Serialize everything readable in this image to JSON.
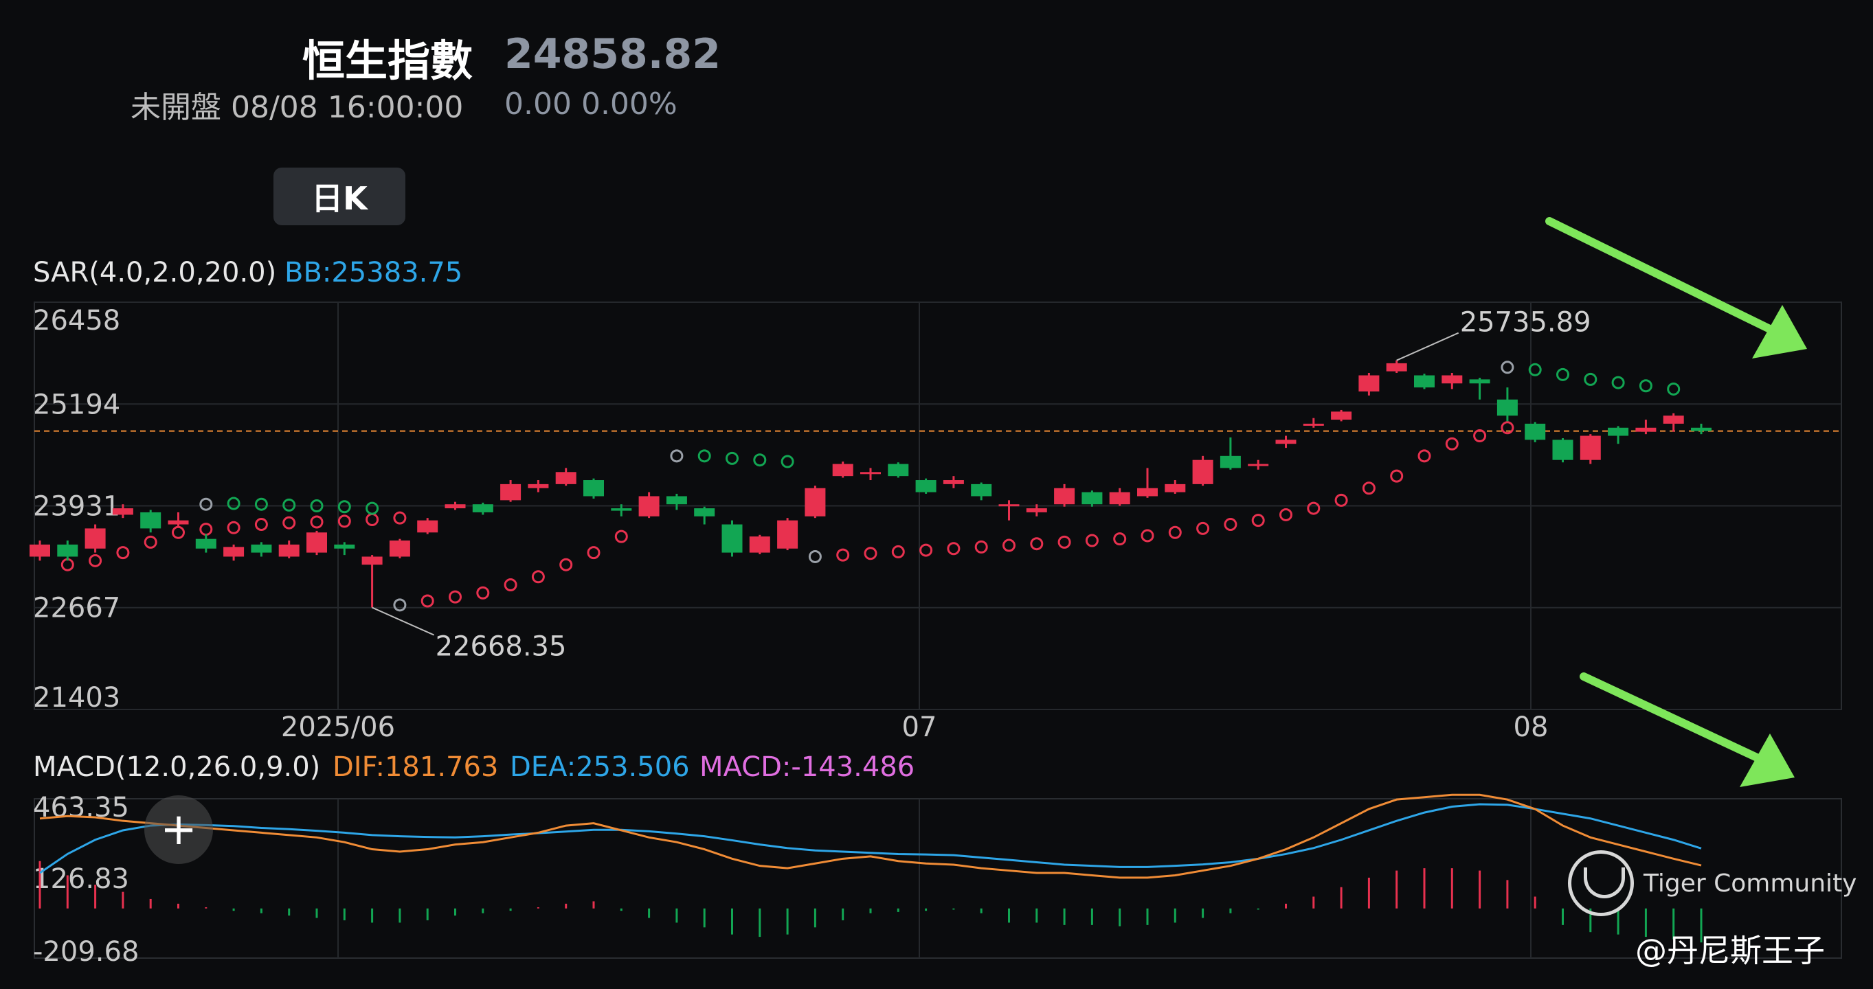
{
  "header": {
    "title": "恒生指數",
    "price": "24858.82",
    "status": "未開盤 08/08 16:00:00",
    "change": "0.00 0.00%",
    "period_button": "日K"
  },
  "indicators": {
    "sar_name": "SAR(4.0,2.0,20.0)",
    "sar_bb": "BB:25383.75",
    "macd_name": "MACD(12.0,26.0,9.0)",
    "dif": "DIF:181.763",
    "dea": "DEA:253.506",
    "macd": "MACD:-143.486"
  },
  "watermark": {
    "brand": "Tiger Community",
    "author": "@丹尼斯王子"
  },
  "colors": {
    "up": "#e8314f",
    "down": "#12a653",
    "dif": "#f08c36",
    "dea": "#2ea6e8",
    "last_price_line": "#f08c36",
    "arrow": "#7ee65a"
  },
  "chart_data": [
    {
      "type": "candlestick",
      "title": "",
      "yaxis_ticks": [
        26458,
        25194,
        23931,
        22667,
        21403
      ],
      "ylim": [
        21403,
        26458
      ],
      "xaxis_ticks": [
        "2025/06",
        "07",
        "08"
      ],
      "last_price": 24858.82,
      "annotations": [
        {
          "label": "25735.89",
          "value": 25735.89
        },
        {
          "label": "22668.35",
          "value": 22668.35
        }
      ],
      "candles": [
        [
          23300,
          23450,
          23500,
          23250
        ],
        [
          23450,
          23300,
          23500,
          23250
        ],
        [
          23400,
          23650,
          23700,
          23350
        ],
        [
          23820,
          23900,
          23950,
          23780
        ],
        [
          23850,
          23650,
          23880,
          23600
        ],
        [
          23700,
          23750,
          23850,
          23680
        ],
        [
          23520,
          23400,
          23580,
          23350
        ],
        [
          23300,
          23420,
          23450,
          23250
        ],
        [
          23450,
          23350,
          23480,
          23300
        ],
        [
          23300,
          23450,
          23500,
          23280
        ],
        [
          23350,
          23600,
          23620,
          23320
        ],
        [
          23450,
          23400,
          23480,
          23320
        ],
        [
          23200,
          23300,
          23320,
          22668.35
        ],
        [
          23300,
          23500,
          23520,
          23280
        ],
        [
          23600,
          23750,
          23780,
          23580
        ],
        [
          23900,
          23950,
          23980,
          23880
        ],
        [
          23950,
          23850,
          23970,
          23820
        ],
        [
          24000,
          24200,
          24250,
          23980
        ],
        [
          24150,
          24200,
          24250,
          24100
        ],
        [
          24200,
          24350,
          24400,
          24180
        ],
        [
          24250,
          24050,
          24270,
          24020
        ],
        [
          23900,
          23870,
          23950,
          23800
        ],
        [
          23800,
          24050,
          24100,
          23780
        ],
        [
          24050,
          23950,
          24080,
          23880
        ],
        [
          23900,
          23800,
          23920,
          23700
        ],
        [
          23700,
          23350,
          23750,
          23300
        ],
        [
          23350,
          23550,
          23570,
          23330
        ],
        [
          23400,
          23750,
          23780,
          23380
        ],
        [
          23800,
          24150,
          24180,
          23780
        ],
        [
          24300,
          24450,
          24480,
          24280
        ],
        [
          24350,
          24350,
          24400,
          24250
        ],
        [
          24450,
          24300,
          24470,
          24280
        ],
        [
          24250,
          24100,
          24270,
          24080
        ],
        [
          24200,
          24250,
          24300,
          24150
        ],
        [
          24200,
          24050,
          24220,
          24000
        ],
        [
          23950,
          23950,
          24000,
          23750
        ],
        [
          23850,
          23900,
          23950,
          23800
        ],
        [
          23950,
          24150,
          24200,
          23920
        ],
        [
          24100,
          23950,
          24120,
          23920
        ],
        [
          23950,
          24100,
          24150,
          23930
        ],
        [
          24050,
          24150,
          24400,
          24030
        ],
        [
          24100,
          24200,
          24250,
          24080
        ],
        [
          24200,
          24500,
          24550,
          24180
        ],
        [
          24550,
          24400,
          24780,
          24380
        ],
        [
          24450,
          24450,
          24500,
          24380
        ],
        [
          24700,
          24750,
          24800,
          24650
        ],
        [
          24950,
          24950,
          25020,
          24900
        ],
        [
          25000,
          25100,
          25120,
          24980
        ],
        [
          25350,
          25550,
          25580,
          25300
        ],
        [
          25600,
          25700,
          25735.89,
          25580
        ],
        [
          25550,
          25400,
          25570,
          25380
        ],
        [
          25450,
          25550,
          25580,
          25380
        ],
        [
          25500,
          25450,
          25520,
          25250
        ],
        [
          25250,
          25050,
          25400,
          24980
        ],
        [
          24950,
          24750,
          24970,
          24720
        ],
        [
          24750,
          24500,
          24770,
          24470
        ],
        [
          24500,
          24800,
          24820,
          24450
        ],
        [
          24900,
          24800,
          24920,
          24700
        ],
        [
          24850,
          24900,
          25000,
          24820
        ],
        [
          24950,
          25050,
          25080,
          24850
        ],
        [
          24900,
          24858.82,
          24950,
          24820
        ]
      ],
      "sar_dots": [
        {
          "start": 1,
          "values": [
            23200,
            23250,
            23350,
            23480,
            23600,
            23640,
            23660,
            23700,
            23720,
            23730,
            23740,
            23760,
            23780
          ],
          "trend": "up"
        },
        {
          "start": 6,
          "values": [
            23950,
            23960,
            23950,
            23940,
            23930,
            23920,
            23900
          ],
          "trend": "down",
          "first_gray": true
        },
        {
          "start": 13,
          "values": [
            22700,
            22750,
            22800,
            22850,
            22950,
            23050,
            23200,
            23350,
            23550
          ],
          "trend": "up",
          "first_gray": true
        },
        {
          "start": 23,
          "values": [
            24550,
            24550,
            24520,
            24500,
            24480
          ],
          "trend": "down",
          "first_gray": true
        },
        {
          "start": 28,
          "values": [
            23300,
            23320,
            23340,
            23360,
            23380,
            23400,
            23420,
            23440,
            23460,
            23480,
            23500,
            23520,
            23560,
            23600,
            23650,
            23700,
            23750,
            23820,
            23900,
            24000,
            24150,
            24300,
            24550,
            24700,
            24800,
            24900
          ],
          "trend": "up",
          "first_gray": true
        },
        {
          "start": 53,
          "values": [
            25650,
            25620,
            25560,
            25500,
            25460,
            25420,
            25380
          ],
          "trend": "down",
          "first_gray": true
        }
      ]
    },
    {
      "type": "macd",
      "yaxis_ticks": [
        463.35,
        126.83,
        -209.68
      ],
      "ylim": [
        -209.68,
        463.35
      ],
      "dif": [
        380,
        390,
        385,
        370,
        360,
        350,
        340,
        330,
        320,
        310,
        300,
        280,
        250,
        240,
        250,
        270,
        280,
        300,
        320,
        350,
        360,
        330,
        300,
        280,
        250,
        210,
        180,
        170,
        190,
        210,
        220,
        200,
        190,
        185,
        170,
        160,
        150,
        150,
        140,
        130,
        130,
        140,
        160,
        180,
        210,
        250,
        300,
        360,
        420,
        460,
        470,
        480,
        480,
        460,
        420,
        350,
        300,
        270,
        240,
        210,
        181.763
      ],
      "dea": [
        150,
        230,
        290,
        330,
        350,
        355,
        352,
        348,
        340,
        335,
        328,
        320,
        310,
        305,
        302,
        300,
        305,
        312,
        318,
        325,
        332,
        332,
        326,
        316,
        305,
        288,
        270,
        255,
        245,
        240,
        235,
        230,
        228,
        225,
        215,
        205,
        195,
        185,
        180,
        175,
        175,
        180,
        186,
        195,
        210,
        230,
        255,
        290,
        330,
        370,
        405,
        430,
        440,
        438,
        420,
        400,
        380,
        350,
        320,
        290,
        253.506
      ],
      "hist": [
        200,
        140,
        100,
        70,
        40,
        20,
        5,
        -10,
        -20,
        -30,
        -40,
        -50,
        -60,
        -60,
        -50,
        -30,
        -20,
        -10,
        5,
        20,
        30,
        -10,
        -40,
        -60,
        -80,
        -110,
        -120,
        -110,
        -80,
        -50,
        -20,
        -15,
        -10,
        -5,
        -20,
        -60,
        -60,
        -70,
        -70,
        -75,
        -70,
        -60,
        -40,
        -20,
        -5,
        20,
        50,
        90,
        130,
        160,
        170,
        170,
        160,
        120,
        50,
        -70,
        -100,
        -110,
        -120,
        -130,
        -143.486
      ]
    }
  ]
}
